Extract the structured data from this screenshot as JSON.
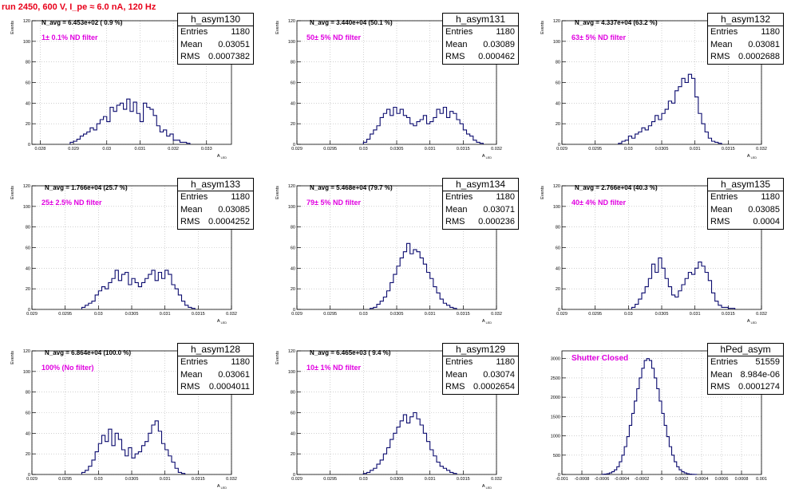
{
  "run_title": "run 2450,   600 V, I_pe ≈ 6.0 nA, 120 Hz",
  "stat_labels": {
    "entries": "Entries",
    "mean": "Mean",
    "rms": "RMS"
  },
  "colors": {
    "line": "#0a0a6e",
    "title": "#e8001a",
    "filter": "#e000e0",
    "grid": "#b4b4b4"
  },
  "chart_data": [
    {
      "type": "bar",
      "name": "h_asym130",
      "navg": "N_avg = 6.453e+02 ( 0.9 %)",
      "filter_label": "1± 0.1% ND filter",
      "stats": {
        "entries": "1180",
        "mean": "0.03051",
        "rms": "0.0007382"
      },
      "ylabel": "Events",
      "xlabel": "A_LED",
      "xlim": [
        0.02775,
        0.03375
      ],
      "ylim": [
        0,
        120
      ],
      "xticks": [
        "0.028",
        "0.029",
        "0.03",
        "0.031",
        "0.032",
        "0.033"
      ],
      "xtick_values": [
        0.028,
        0.029,
        0.03,
        0.031,
        0.032,
        0.033
      ],
      "yticks": [
        0,
        20,
        40,
        60,
        80,
        100,
        120
      ],
      "bin_edges_start": 0.0289,
      "bin_width": 0.0001,
      "values": [
        2,
        3,
        5,
        8,
        10,
        12,
        16,
        14,
        20,
        24,
        27,
        22,
        36,
        32,
        38,
        40,
        34,
        44,
        32,
        41,
        30,
        22,
        40,
        36,
        34,
        28,
        18,
        12,
        14,
        8,
        10,
        4,
        4,
        2,
        2,
        1
      ]
    },
    {
      "type": "bar",
      "name": "h_asym131",
      "navg": "N_avg = 3.440e+04 (50.1 %)",
      "filter_label": "50± 5% ND filter",
      "stats": {
        "entries": "1180",
        "mean": "0.03089",
        "rms": "0.000462"
      },
      "ylabel": "Events",
      "xlabel": "A_LED",
      "xlim": [
        0.029,
        0.032
      ],
      "ylim": [
        0,
        120
      ],
      "xticks": [
        "0.029",
        "0.0295",
        "0.03",
        "0.0305",
        "0.031",
        "0.0315",
        "0.032"
      ],
      "xtick_values": [
        0.029,
        0.0295,
        0.03,
        0.0305,
        0.031,
        0.0315,
        0.032
      ],
      "yticks": [
        0,
        20,
        40,
        60,
        80,
        100,
        120
      ],
      "bin_edges_start": 0.03,
      "bin_width": 5e-05,
      "values": [
        2,
        5,
        10,
        14,
        18,
        26,
        30,
        34,
        28,
        36,
        30,
        34,
        28,
        26,
        20,
        18,
        22,
        24,
        28,
        20,
        22,
        26,
        34,
        30,
        36,
        26,
        32,
        30,
        24,
        20,
        14,
        10,
        8,
        4,
        2,
        1
      ]
    },
    {
      "type": "bar",
      "name": "h_asym132",
      "navg": "N_avg = 4.337e+04 (63.2 %)",
      "filter_label": "63± 5% ND filter",
      "stats": {
        "entries": "1180",
        "mean": "0.03081",
        "rms": "0.0002688"
      },
      "ylabel": "Events",
      "xlabel": "A_LED",
      "xlim": [
        0.029,
        0.032
      ],
      "ylim": [
        0,
        120
      ],
      "xticks": [
        "0.029",
        "0.0295",
        "0.03",
        "0.0305",
        "0.031",
        "0.0315",
        "0.032"
      ],
      "xtick_values": [
        0.029,
        0.0295,
        0.03,
        0.0305,
        0.031,
        0.0315,
        0.032
      ],
      "yticks": [
        0,
        20,
        40,
        60,
        80,
        100,
        120
      ],
      "bin_edges_start": 0.02985,
      "bin_width": 5e-05,
      "values": [
        1,
        3,
        4,
        8,
        6,
        10,
        12,
        16,
        14,
        18,
        22,
        28,
        24,
        30,
        34,
        42,
        40,
        52,
        56,
        64,
        60,
        68,
        64,
        46,
        30,
        20,
        12,
        6,
        3,
        2,
        1
      ]
    },
    {
      "type": "bar",
      "name": "h_asym133",
      "navg": "N_avg = 1.766e+04 (25.7 %)",
      "filter_label": "25± 2.5% ND filter",
      "stats": {
        "entries": "1180",
        "mean": "0.03085",
        "rms": "0.0004252"
      },
      "ylabel": "Events",
      "xlabel": "A_LED",
      "xlim": [
        0.029,
        0.032
      ],
      "ylim": [
        0,
        120
      ],
      "xticks": [
        "0.029",
        "0.0295",
        "0.03",
        "0.0305",
        "0.031",
        "0.0315",
        "0.032"
      ],
      "xtick_values": [
        0.029,
        0.0295,
        0.03,
        0.0305,
        0.031,
        0.0315,
        0.032
      ],
      "yticks": [
        0,
        20,
        40,
        60,
        80,
        100,
        120
      ],
      "bin_edges_start": 0.02975,
      "bin_width": 5e-05,
      "values": [
        2,
        4,
        6,
        8,
        14,
        18,
        22,
        20,
        26,
        30,
        38,
        28,
        34,
        36,
        24,
        30,
        26,
        22,
        26,
        30,
        34,
        38,
        28,
        36,
        30,
        38,
        34,
        24,
        20,
        14,
        8,
        4,
        2,
        1
      ]
    },
    {
      "type": "bar",
      "name": "h_asym134",
      "navg": "N_avg = 5.468e+04 (79.7 %)",
      "filter_label": "79± 5% ND filter",
      "stats": {
        "entries": "1180",
        "mean": "0.03071",
        "rms": "0.000236"
      },
      "ylabel": "Events",
      "xlabel": "A_LED",
      "xlim": [
        0.029,
        0.032
      ],
      "ylim": [
        0,
        120
      ],
      "xticks": [
        "0.029",
        "0.0295",
        "0.03",
        "0.0305",
        "0.031",
        "0.0315",
        "0.032"
      ],
      "xtick_values": [
        0.029,
        0.0295,
        0.03,
        0.0305,
        0.031,
        0.0315,
        0.032
      ],
      "yticks": [
        0,
        20,
        40,
        60,
        80,
        100,
        120
      ],
      "bin_edges_start": 0.0301,
      "bin_width": 5e-05,
      "values": [
        1,
        2,
        5,
        8,
        12,
        18,
        26,
        34,
        42,
        50,
        56,
        64,
        54,
        58,
        56,
        50,
        44,
        36,
        30,
        22,
        16,
        10,
        6,
        4,
        2,
        1
      ]
    },
    {
      "type": "bar",
      "name": "h_asym135",
      "navg": "N_avg = 2.766e+04 (40.3 %)",
      "filter_label": "40± 4% ND filter",
      "stats": {
        "entries": "1180",
        "mean": "0.03085",
        "rms": "0.0004"
      },
      "ylabel": "Events",
      "xlabel": "A_LED",
      "xlim": [
        0.029,
        0.032
      ],
      "ylim": [
        0,
        120
      ],
      "xticks": [
        "0.029",
        "0.0295",
        "0.03",
        "0.0305",
        "0.031",
        "0.0315",
        "0.032"
      ],
      "xtick_values": [
        0.029,
        0.0295,
        0.03,
        0.0305,
        0.031,
        0.0315,
        0.032
      ],
      "yticks": [
        0,
        20,
        40,
        60,
        80,
        100,
        120
      ],
      "bin_edges_start": 0.03005,
      "bin_width": 5e-05,
      "values": [
        2,
        5,
        10,
        16,
        22,
        30,
        44,
        36,
        50,
        40,
        30,
        22,
        14,
        12,
        18,
        24,
        30,
        36,
        34,
        40,
        46,
        42,
        36,
        28,
        16,
        8,
        4,
        2,
        2,
        1,
        1
      ]
    },
    {
      "type": "bar",
      "name": "h_asym128",
      "navg": "N_avg = 6.864e+04 (100.0 %)",
      "filter_label": "100% (No filter)",
      "stats": {
        "entries": "1180",
        "mean": "0.03061",
        "rms": "0.0004011"
      },
      "ylabel": "Events",
      "xlabel": "A_LED",
      "xlim": [
        0.029,
        0.032
      ],
      "ylim": [
        0,
        120
      ],
      "xticks": [
        "0.029",
        "0.0295",
        "0.03",
        "0.0305",
        "0.031",
        "0.0315",
        "0.032"
      ],
      "xtick_values": [
        0.029,
        0.0295,
        0.03,
        0.0305,
        0.031,
        0.0315,
        0.032
      ],
      "yticks": [
        0,
        20,
        40,
        60,
        80,
        100,
        120
      ],
      "bin_edges_start": 0.02975,
      "bin_width": 5e-05,
      "values": [
        2,
        4,
        8,
        14,
        22,
        30,
        38,
        32,
        44,
        28,
        40,
        34,
        24,
        18,
        26,
        16,
        20,
        22,
        28,
        32,
        40,
        48,
        52,
        42,
        30,
        24,
        18,
        12,
        6,
        2,
        1
      ]
    },
    {
      "type": "bar",
      "name": "h_asym129",
      "navg": "N_avg = 6.465e+03 ( 9.4 %)",
      "filter_label": "10± 1% ND filter",
      "stats": {
        "entries": "1180",
        "mean": "0.03074",
        "rms": "0.0002654"
      },
      "ylabel": "Events",
      "xlabel": "A_LED",
      "xlim": [
        0.029,
        0.032
      ],
      "ylim": [
        0,
        120
      ],
      "xticks": [
        "0.029",
        "0.0295",
        "0.03",
        "0.0305",
        "0.031",
        "0.0315",
        "0.032"
      ],
      "xtick_values": [
        0.029,
        0.0295,
        0.03,
        0.0305,
        0.031,
        0.0315,
        0.032
      ],
      "yticks": [
        0,
        20,
        40,
        60,
        80,
        100,
        120
      ],
      "bin_edges_start": 0.03,
      "bin_width": 5e-05,
      "values": [
        1,
        2,
        4,
        6,
        10,
        14,
        20,
        26,
        34,
        40,
        46,
        52,
        58,
        50,
        56,
        60,
        54,
        48,
        40,
        32,
        24,
        18,
        12,
        8,
        6,
        4,
        2,
        1
      ]
    },
    {
      "type": "bar",
      "name": "hPed_asym",
      "navg": "",
      "filter_label": "Shutter Closed",
      "stats": {
        "entries": "51559",
        "mean": "8.984e-06",
        "rms": "0.0001274"
      },
      "ylabel": "",
      "xlabel": "",
      "xlim": [
        -0.001,
        0.001
      ],
      "ylim": [
        0,
        3200
      ],
      "xticks": [
        "-0.001",
        "-0.0008",
        "-0.0006",
        "-0.0004",
        "-0.0002",
        "0",
        "0.0002",
        "0.0004",
        "0.0006",
        "0.0008",
        "0.001"
      ],
      "xtick_values": [
        -0.001,
        -0.0008,
        -0.0006,
        -0.0004,
        -0.0002,
        0,
        0.0002,
        0.0004,
        0.0006,
        0.0008,
        0.001
      ],
      "yticks": [
        0,
        500,
        1000,
        1500,
        2000,
        2500,
        3000
      ],
      "bin_edges_start": -0.0006,
      "bin_width": 2.5e-05,
      "values": [
        5,
        10,
        20,
        40,
        70,
        120,
        200,
        330,
        500,
        720,
        980,
        1270,
        1580,
        1900,
        2220,
        2500,
        2750,
        2950,
        3000,
        2950,
        2750,
        2500,
        2220,
        1900,
        1580,
        1270,
        980,
        720,
        500,
        330,
        200,
        120,
        70,
        40,
        20,
        10,
        5,
        2
      ]
    }
  ]
}
